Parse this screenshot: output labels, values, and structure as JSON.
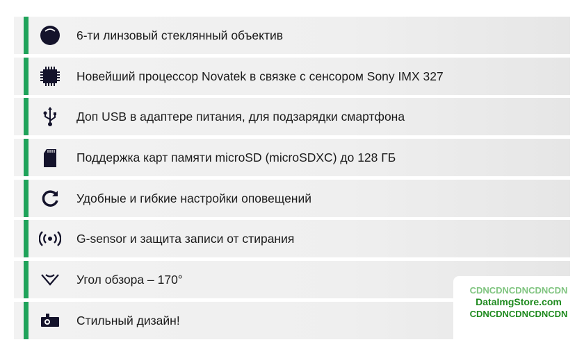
{
  "accent_color": "#1fa35a",
  "features": [
    {
      "icon": "lens-icon",
      "text": "6-ти линзовый стеклянный объектив"
    },
    {
      "icon": "processor-chip-icon",
      "text": "Новейший процессор Novatek в связке с сенсором Sony IMX 327"
    },
    {
      "icon": "usb-icon",
      "text": "Доп USB в адаптере питания, для подзарядки смартфона"
    },
    {
      "icon": "sd-card-icon",
      "text": "Поддержка карт памяти microSD (microSDXC) до 128 ГБ"
    },
    {
      "icon": "refresh-icon",
      "text": "Удобные и гибкие настройки оповещений"
    },
    {
      "icon": "g-sensor-icon",
      "text": "G-sensor и защита записи от стирания"
    },
    {
      "icon": "view-angle-icon",
      "text": "Угол обзора – 170°"
    },
    {
      "icon": "dashcam-icon",
      "text": "Стильный дизайн!"
    }
  ],
  "watermark": {
    "line1": "CDNCDNCDNCDNCDN",
    "line2": "DataImgStore.com",
    "line3": "CDNCDNCDNCDNCDN"
  }
}
